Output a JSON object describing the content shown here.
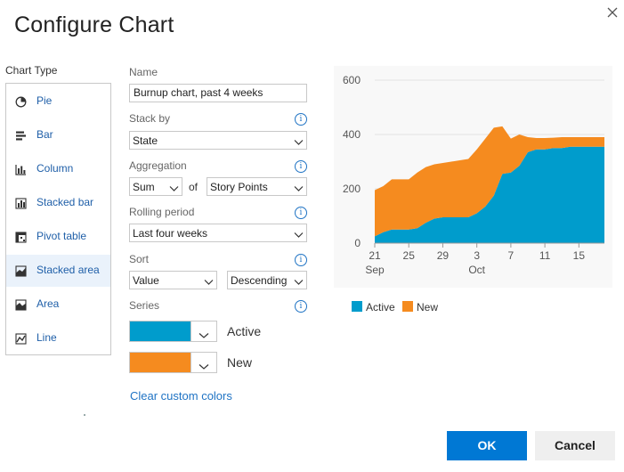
{
  "dialog": {
    "title": "Configure Chart",
    "close_icon": "close-icon"
  },
  "chart_types": {
    "label": "Chart Type",
    "selected": "Stacked area",
    "items": [
      {
        "label": "Pie",
        "icon": "pie-icon"
      },
      {
        "label": "Bar",
        "icon": "bar-chart-icon"
      },
      {
        "label": "Column",
        "icon": "column-chart-icon"
      },
      {
        "label": "Stacked bar",
        "icon": "stacked-bar-icon"
      },
      {
        "label": "Pivot table",
        "icon": "pivot-table-icon"
      },
      {
        "label": "Stacked area",
        "icon": "stacked-area-icon"
      },
      {
        "label": "Area",
        "icon": "area-chart-icon"
      },
      {
        "label": "Line",
        "icon": "line-chart-icon"
      }
    ]
  },
  "form": {
    "name": {
      "label": "Name",
      "value": "Burnup chart, past 4 weeks"
    },
    "stack_by": {
      "label": "Stack by",
      "value": "State"
    },
    "aggregation": {
      "label": "Aggregation",
      "func": "Sum",
      "of_text": "of",
      "field": "Story Points"
    },
    "rolling_period": {
      "label": "Rolling period",
      "value": "Last four weeks"
    },
    "sort": {
      "label": "Sort",
      "by": "Value",
      "direction": "Descending"
    },
    "series": {
      "label": "Series",
      "items": [
        {
          "name": "Active",
          "color": "#009ccc"
        },
        {
          "name": "New",
          "color": "#f58b1f"
        }
      ]
    },
    "clear_colors_label": "Clear custom colors"
  },
  "chart_data": {
    "type": "area",
    "stacked": true,
    "x": [
      "21 Sep",
      "22 Sep",
      "23 Sep",
      "24 Sep",
      "25 Sep",
      "26 Sep",
      "27 Sep",
      "28 Sep",
      "29 Sep",
      "30 Sep",
      "1 Oct",
      "2 Oct",
      "3 Oct",
      "4 Oct",
      "5 Oct",
      "6 Oct",
      "7 Oct",
      "8 Oct",
      "9 Oct",
      "10 Oct",
      "11 Oct",
      "12 Oct",
      "13 Oct",
      "14 Oct",
      "15 Oct",
      "16 Oct",
      "17 Oct",
      "18 Oct"
    ],
    "x_tick_labels": [
      "21",
      "25",
      "29",
      "3",
      "7",
      "11",
      "15"
    ],
    "x_group_labels": [
      "Sep",
      "Oct"
    ],
    "y_ticks": [
      0,
      200,
      400,
      600
    ],
    "ylim": [
      0,
      600
    ],
    "grid": true,
    "legend_position": "bottom-left",
    "series": [
      {
        "name": "Active",
        "color": "#009ccc",
        "values": [
          25,
          40,
          50,
          50,
          50,
          55,
          75,
          90,
          95,
          95,
          95,
          95,
          110,
          135,
          175,
          255,
          260,
          285,
          335,
          345,
          345,
          350,
          350,
          355,
          355,
          355,
          355,
          355
        ]
      },
      {
        "name": "New",
        "color": "#f58b1f",
        "values": [
          170,
          170,
          185,
          185,
          185,
          205,
          205,
          200,
          200,
          205,
          210,
          215,
          235,
          250,
          250,
          175,
          125,
          115,
          55,
          42,
          42,
          38,
          40,
          35,
          35,
          35,
          35,
          35
        ]
      }
    ]
  },
  "buttons": {
    "ok_label": "OK",
    "cancel_label": "Cancel"
  }
}
